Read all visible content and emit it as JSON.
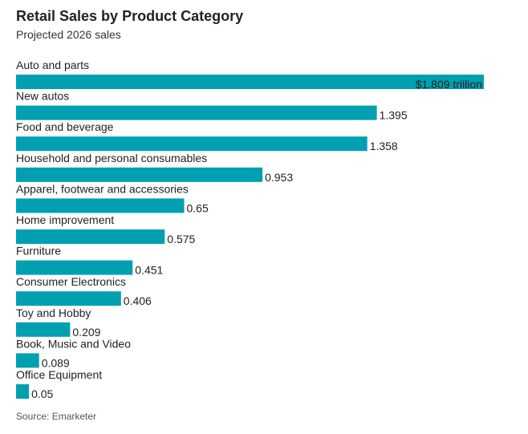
{
  "colors": {
    "bar": "#00a0b0",
    "text": "#222222",
    "muted": "#555555"
  },
  "chart_data": {
    "type": "bar",
    "orientation": "horizontal",
    "title": "Retail Sales by Product Category",
    "subtitle": "Projected 2026 sales",
    "source": "Source: Emarketer",
    "unit_label": "$1.809 trillion",
    "xlim": [
      0,
      1.809
    ],
    "grid": false,
    "categories": [
      "Auto and parts",
      "New autos",
      "Food and beverage",
      "Household and personal consumables",
      "Apparel, footwear and accessories",
      "Home improvement",
      "Furniture",
      "Consumer Electronics",
      "Toy and Hobby",
      "Book, Music and Video",
      "Office Equipment"
    ],
    "values": [
      1.809,
      1.395,
      1.358,
      0.953,
      0.65,
      0.575,
      0.451,
      0.406,
      0.209,
      0.089,
      0.05
    ],
    "value_labels": [
      "$1.809 trillion",
      "1.395",
      "1.358",
      "0.953",
      "0.65",
      "0.575",
      "0.451",
      "0.406",
      "0.209",
      "0.089",
      "0.05"
    ]
  }
}
